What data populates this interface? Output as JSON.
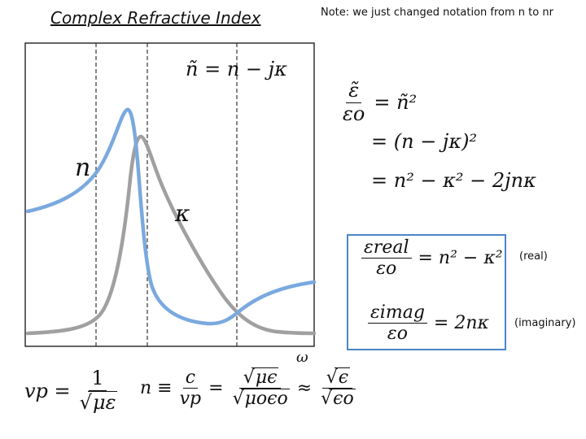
{
  "title": "Complex Refractive Index",
  "note": "Note: we just changed notation from n to nr",
  "plot": {
    "eq_label": "ñ = n − jκ",
    "n_label": "n",
    "kappa_label": "κ",
    "x_label": "ω",
    "n_color": "#7aa9de",
    "kappa_color": "#a0a0a0"
  },
  "eq1": {
    "lhs_num": "ε̃",
    "lhs_den": "εo",
    "line1": "= ñ²",
    "line2": "= (n − jκ)²",
    "line3": "= n² − κ² − 2jnκ"
  },
  "box": {
    "real_num": "εreal",
    "real_den": "εo",
    "real_rhs": "= n² − κ²",
    "real_label": "(real)",
    "imag_num": "εimag",
    "imag_den": "εo",
    "imag_rhs": "= 2nκ",
    "imag_label": "(imaginary)"
  },
  "bottom": {
    "vp_lhs": "vp =",
    "vp_num": "1",
    "vp_den": "με",
    "n_lhs": "n ≡",
    "n_num1": "c",
    "n_den1": "vp",
    "eq": "=",
    "n_num2": "μϵ",
    "n_den2": "μoϵo",
    "approx": "≈",
    "n_num3": "ϵ",
    "n_den3": "ϵo"
  }
}
